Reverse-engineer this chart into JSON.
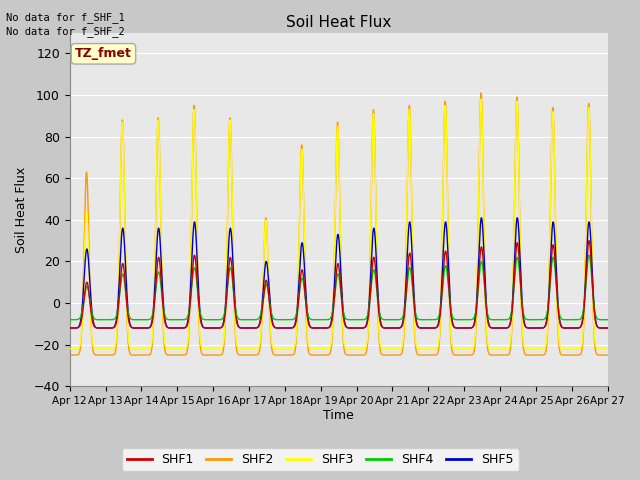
{
  "title": "Soil Heat Flux",
  "ylabel": "Soil Heat Flux",
  "xlabel": "Time",
  "ylim": [
    -40,
    130
  ],
  "yticks": [
    -40,
    -20,
    0,
    20,
    40,
    60,
    80,
    100,
    120
  ],
  "xtick_labels": [
    "Apr 12",
    "Apr 13",
    "Apr 14",
    "Apr 15",
    "Apr 16",
    "Apr 17",
    "Apr 18",
    "Apr 19",
    "Apr 20",
    "Apr 21",
    "Apr 22",
    "Apr 23",
    "Apr 24",
    "Apr 25",
    "Apr 26",
    "Apr 27"
  ],
  "colors": {
    "SHF1": "#cc0000",
    "SHF2": "#ff9900",
    "SHF3": "#ffff00",
    "SHF4": "#00cc00",
    "SHF5": "#0000cc"
  },
  "no_data_text1": "No data for f_SHF_1",
  "no_data_text2": "No data for f_SHF_2",
  "tz_label": "TZ_fmet",
  "fig_facecolor": "#c8c8c8",
  "plot_bg_color": "#e8e8e8",
  "grid_color": "#ffffff",
  "legend_labels": [
    "SHF1",
    "SHF2",
    "SHF3",
    "SHF4",
    "SHF5"
  ]
}
